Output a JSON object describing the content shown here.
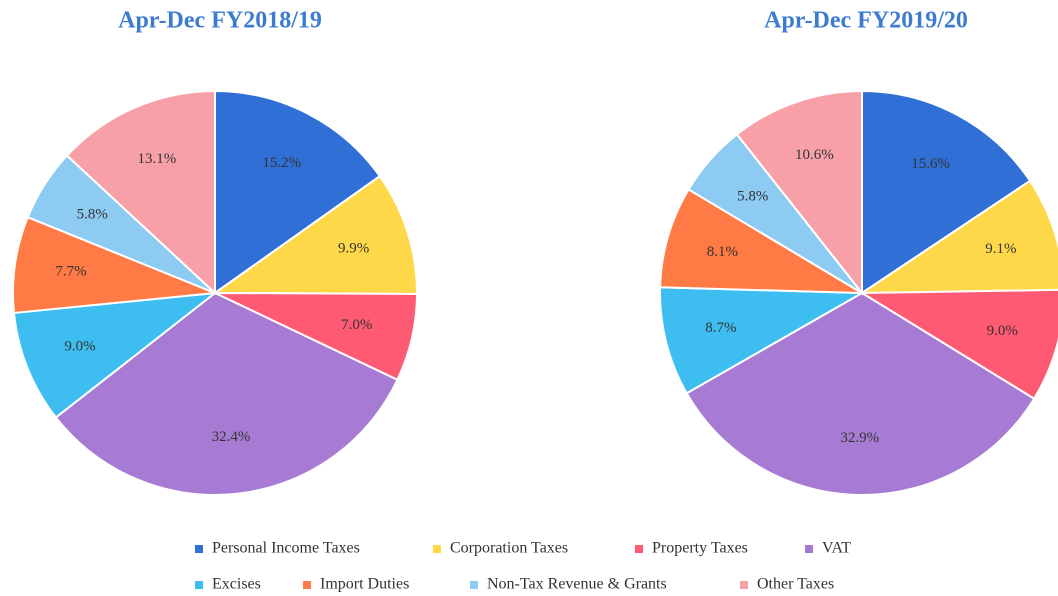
{
  "chart_data": [
    {
      "type": "pie",
      "title": "Apr-Dec FY2018/19",
      "categories": [
        "Personal Income Taxes",
        "Corporation Taxes",
        "Property Taxes",
        "VAT",
        "Excises",
        "Import Duties",
        "Non-Tax Revenue & Grants",
        "Other Taxes"
      ],
      "values": [
        15.2,
        9.9,
        7.0,
        32.4,
        9.0,
        7.7,
        5.8,
        13.1
      ],
      "value_labels": [
        "15.2%",
        "9.9%",
        "7.0%",
        "32.4%",
        "9.0%",
        "7.7%",
        "5.8%",
        "13.1%"
      ],
      "colors": [
        "#2f6fd6",
        "#ffd84a",
        "#ff5a73",
        "#a77bd4",
        "#3dbdf0",
        "#ff7a45",
        "#8ecbf3",
        "#f7a0a8"
      ]
    },
    {
      "type": "pie",
      "title": "Apr-Dec FY2019/20",
      "categories": [
        "Personal Income Taxes",
        "Corporation Taxes",
        "Property Taxes",
        "VAT",
        "Excises",
        "Import Duties",
        "Non-Tax Revenue & Grants",
        "Other Taxes"
      ],
      "values": [
        15.6,
        9.1,
        9.0,
        32.9,
        8.7,
        8.1,
        5.8,
        10.6
      ],
      "value_labels": [
        "15.6%",
        "9.1%",
        "9.0%",
        "32.9%",
        "8.7%",
        "8.1%",
        "5.8%",
        "10.6%"
      ],
      "colors": [
        "#2f6fd6",
        "#ffd84a",
        "#ff5a73",
        "#a77bd4",
        "#3dbdf0",
        "#ff7a45",
        "#8ecbf3",
        "#f7a0a8"
      ]
    }
  ]
}
